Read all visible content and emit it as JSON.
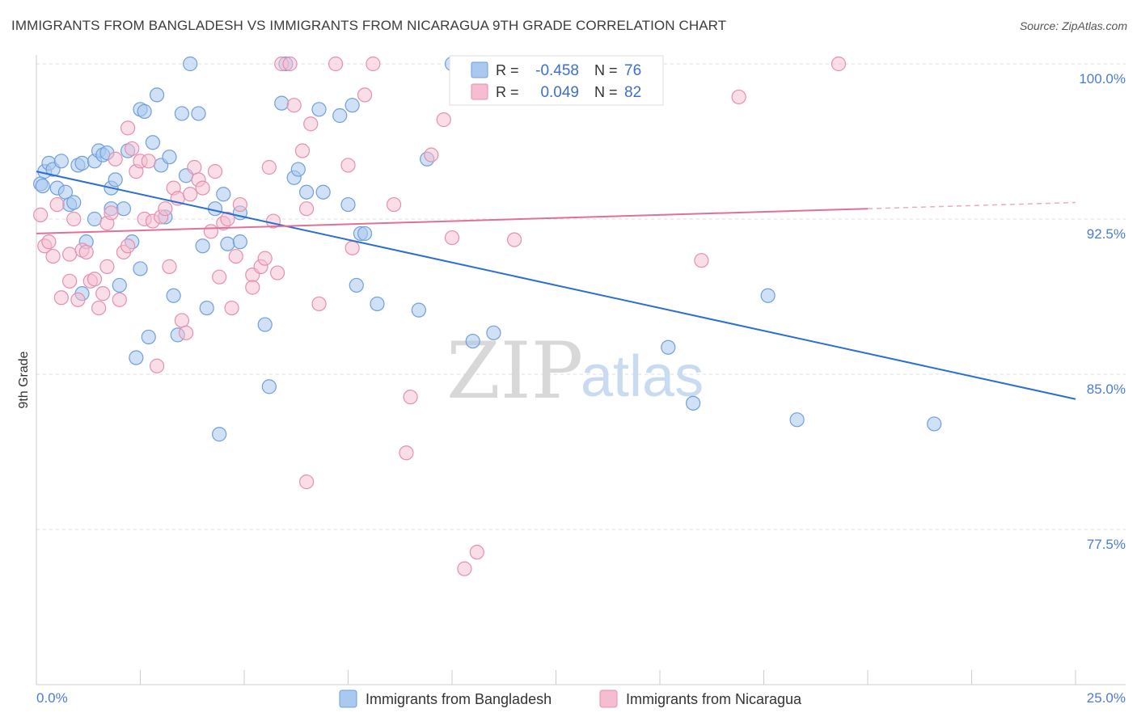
{
  "title": "IMMIGRANTS FROM BANGLADESH VS IMMIGRANTS FROM NICARAGUA 9TH GRADE CORRELATION CHART",
  "source": "Source: ZipAtlas.com",
  "watermark": {
    "zip": "ZIP",
    "atlas": "atlas"
  },
  "legend": {
    "r_label": "R =",
    "n_label": "N =",
    "series1": {
      "r": "-0.458",
      "n": "76"
    },
    "series2": {
      "r": "0.049",
      "n": "82"
    }
  },
  "colors": {
    "blue_fill": "#a9c9ee",
    "blue_stroke": "#6f9fdc",
    "blue_line": "#2a6fd1",
    "pink_fill": "#f6bdd0",
    "pink_stroke": "#e58fae",
    "pink_line": "#e0709a"
  },
  "chart_data": {
    "type": "scatter",
    "title": "IMMIGRANTS FROM BANGLADESH VS IMMIGRANTS FROM NICARAGUA 9TH GRADE CORRELATION CHART",
    "xlabel": "",
    "ylabel": "9th Grade",
    "xlim": [
      0,
      25
    ],
    "ylim": [
      71,
      100.5
    ],
    "x_ticks": [
      {
        "value": 0,
        "label": "0.0%"
      },
      {
        "value": 25,
        "label": "25.0%"
      }
    ],
    "y_ticks": [
      {
        "value": 100,
        "label": "100.0%"
      },
      {
        "value": 92.5,
        "label": "92.5%"
      },
      {
        "value": 85,
        "label": "85.0%"
      },
      {
        "value": 77.5,
        "label": "77.5%"
      }
    ],
    "series": [
      {
        "name": "Immigrants from Bangladesh",
        "r": -0.458,
        "n": 76,
        "trend": {
          "x0": 0,
          "y0": 94.8,
          "x1": 25,
          "y1": 83.8
        },
        "points": [
          [
            0.1,
            94.2
          ],
          [
            0.2,
            94.8
          ],
          [
            0.3,
            95.2
          ],
          [
            0.4,
            94.9
          ],
          [
            0.5,
            94.0
          ],
          [
            0.6,
            95.3
          ],
          [
            0.7,
            93.8
          ],
          [
            0.8,
            93.2
          ],
          [
            0.9,
            93.3
          ],
          [
            1.0,
            95.1
          ],
          [
            1.1,
            95.2
          ],
          [
            1.2,
            91.4
          ],
          [
            1.1,
            88.9
          ],
          [
            1.4,
            92.5
          ],
          [
            1.4,
            95.3
          ],
          [
            1.5,
            95.8
          ],
          [
            1.6,
            95.6
          ],
          [
            1.7,
            95.7
          ],
          [
            1.8,
            94.0
          ],
          [
            1.8,
            93.0
          ],
          [
            1.9,
            94.4
          ],
          [
            2.0,
            89.3
          ],
          [
            2.1,
            93.0
          ],
          [
            2.2,
            95.8
          ],
          [
            2.3,
            91.4
          ],
          [
            2.4,
            85.8
          ],
          [
            2.5,
            97.8
          ],
          [
            2.5,
            90.1
          ],
          [
            2.6,
            97.7
          ],
          [
            2.7,
            86.8
          ],
          [
            2.8,
            96.2
          ],
          [
            2.9,
            98.5
          ],
          [
            3.0,
            95.1
          ],
          [
            3.1,
            92.6
          ],
          [
            3.2,
            95.5
          ],
          [
            3.3,
            88.8
          ],
          [
            3.4,
            86.9
          ],
          [
            3.5,
            97.6
          ],
          [
            3.6,
            94.6
          ],
          [
            3.7,
            100.0
          ],
          [
            3.9,
            97.6
          ],
          [
            4.0,
            91.2
          ],
          [
            4.1,
            88.2
          ],
          [
            4.3,
            93.0
          ],
          [
            4.4,
            82.1
          ],
          [
            4.5,
            93.7
          ],
          [
            4.6,
            91.3
          ],
          [
            4.9,
            91.4
          ],
          [
            4.9,
            92.8
          ],
          [
            5.5,
            87.4
          ],
          [
            5.6,
            84.4
          ],
          [
            5.9,
            98.1
          ],
          [
            6.0,
            100.0
          ],
          [
            6.2,
            94.5
          ],
          [
            6.3,
            94.9
          ],
          [
            6.5,
            93.8
          ],
          [
            6.8,
            97.8
          ],
          [
            6.9,
            93.8
          ],
          [
            7.3,
            97.5
          ],
          [
            7.5,
            93.2
          ],
          [
            7.6,
            98.0
          ],
          [
            7.7,
            89.3
          ],
          [
            7.8,
            91.8
          ],
          [
            7.9,
            91.8
          ],
          [
            8.2,
            88.4
          ],
          [
            9.2,
            88.1
          ],
          [
            9.4,
            95.4
          ],
          [
            10.0,
            100.0
          ],
          [
            10.5,
            86.6
          ],
          [
            11.0,
            87.0
          ],
          [
            15.2,
            86.3
          ],
          [
            15.8,
            83.6
          ],
          [
            17.6,
            88.8
          ],
          [
            18.3,
            82.8
          ],
          [
            21.6,
            82.6
          ],
          [
            0.15,
            94.1
          ]
        ]
      },
      {
        "name": "Immigrants from Nicaragua",
        "r": 0.049,
        "n": 82,
        "trend": {
          "x0": 0,
          "y0": 91.8,
          "x1": 20.0,
          "y1": 93.0
        },
        "trend_dashed_to": {
          "x": 25,
          "y": 93.3
        },
        "points": [
          [
            0.1,
            92.7
          ],
          [
            0.2,
            91.2
          ],
          [
            0.3,
            91.4
          ],
          [
            0.4,
            90.7
          ],
          [
            0.5,
            93.2
          ],
          [
            0.6,
            88.7
          ],
          [
            0.8,
            90.8
          ],
          [
            0.8,
            89.5
          ],
          [
            0.9,
            92.5
          ],
          [
            1.0,
            88.6
          ],
          [
            1.1,
            91.0
          ],
          [
            1.2,
            90.9
          ],
          [
            1.3,
            89.5
          ],
          [
            1.4,
            89.6
          ],
          [
            1.5,
            88.2
          ],
          [
            1.6,
            88.9
          ],
          [
            1.7,
            92.3
          ],
          [
            1.7,
            90.2
          ],
          [
            1.8,
            92.8
          ],
          [
            1.9,
            95.4
          ],
          [
            2.0,
            88.6
          ],
          [
            2.1,
            90.9
          ],
          [
            2.2,
            91.2
          ],
          [
            2.2,
            96.9
          ],
          [
            2.3,
            95.9
          ],
          [
            2.4,
            94.8
          ],
          [
            2.5,
            95.3
          ],
          [
            2.6,
            92.5
          ],
          [
            2.7,
            95.3
          ],
          [
            2.8,
            92.4
          ],
          [
            2.9,
            85.4
          ],
          [
            3.0,
            92.6
          ],
          [
            3.1,
            93.0
          ],
          [
            3.2,
            90.2
          ],
          [
            3.3,
            94.0
          ],
          [
            3.4,
            93.5
          ],
          [
            3.5,
            87.6
          ],
          [
            3.6,
            87.0
          ],
          [
            3.7,
            93.7
          ],
          [
            3.8,
            95.0
          ],
          [
            3.9,
            94.4
          ],
          [
            4.0,
            94.0
          ],
          [
            4.2,
            91.9
          ],
          [
            4.3,
            94.8
          ],
          [
            4.4,
            89.7
          ],
          [
            4.5,
            92.3
          ],
          [
            4.6,
            92.5
          ],
          [
            4.7,
            88.2
          ],
          [
            4.8,
            90.7
          ],
          [
            4.9,
            93.2
          ],
          [
            5.2,
            89.8
          ],
          [
            5.2,
            89.2
          ],
          [
            5.4,
            90.2
          ],
          [
            5.5,
            90.6
          ],
          [
            5.6,
            95.0
          ],
          [
            5.7,
            92.4
          ],
          [
            5.8,
            89.9
          ],
          [
            5.9,
            100.0
          ],
          [
            6.1,
            100.0
          ],
          [
            6.2,
            98.0
          ],
          [
            6.4,
            95.8
          ],
          [
            6.5,
            93.0
          ],
          [
            6.5,
            79.8
          ],
          [
            6.6,
            97.1
          ],
          [
            6.8,
            88.4
          ],
          [
            7.2,
            100.0
          ],
          [
            7.5,
            95.1
          ],
          [
            7.6,
            91.1
          ],
          [
            7.9,
            98.5
          ],
          [
            8.1,
            100.0
          ],
          [
            8.6,
            93.2
          ],
          [
            9.0,
            83.9
          ],
          [
            8.9,
            81.2
          ],
          [
            9.5,
            95.6
          ],
          [
            9.8,
            97.3
          ],
          [
            10.0,
            91.6
          ],
          [
            10.3,
            75.6
          ],
          [
            10.6,
            76.4
          ],
          [
            11.5,
            91.5
          ],
          [
            16.0,
            90.5
          ],
          [
            16.9,
            98.4
          ],
          [
            19.3,
            100.0
          ]
        ]
      }
    ]
  },
  "bottom_legend": {
    "series1_label": "Immigrants from Bangladesh",
    "series2_label": "Immigrants from Nicaragua"
  }
}
